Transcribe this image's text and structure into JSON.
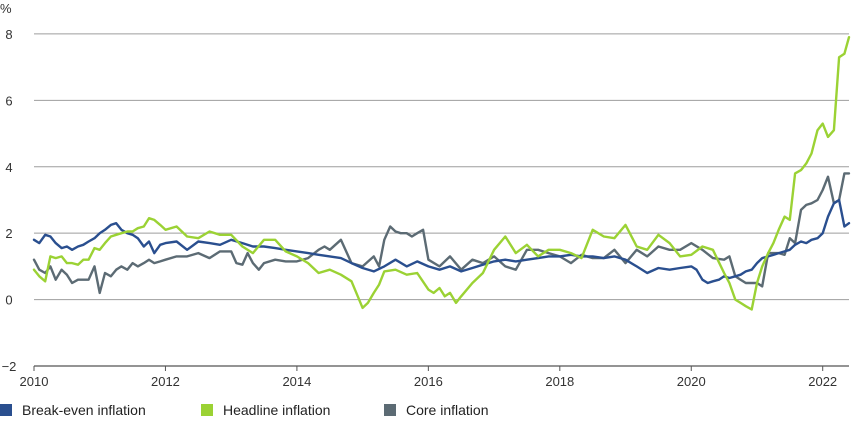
{
  "chart_data": {
    "type": "line",
    "ylabel": "%",
    "ylim": [
      -2,
      8.6
    ],
    "xlim": [
      2010,
      2022.4
    ],
    "yticks": [
      -2,
      0,
      2,
      4,
      6,
      8
    ],
    "xticks": [
      2010,
      2012,
      2014,
      2016,
      2018,
      2020,
      2022
    ],
    "grid": "horizontal",
    "legend_position": "bottom",
    "series": [
      {
        "name": "Break-even inflation",
        "color": "#2a4f8f",
        "x": [
          2010.0,
          2010.08,
          2010.17,
          2010.25,
          2010.33,
          2010.42,
          2010.5,
          2010.58,
          2010.67,
          2010.75,
          2010.83,
          2010.92,
          2011.0,
          2011.08,
          2011.17,
          2011.25,
          2011.33,
          2011.42,
          2011.5,
          2011.58,
          2011.67,
          2011.75,
          2011.83,
          2011.92,
          2012.0,
          2012.17,
          2012.33,
          2012.5,
          2012.67,
          2012.83,
          2013.0,
          2013.17,
          2013.33,
          2013.5,
          2013.67,
          2013.83,
          2014.0,
          2014.17,
          2014.33,
          2014.5,
          2014.67,
          2014.83,
          2015.0,
          2015.17,
          2015.33,
          2015.5,
          2015.67,
          2015.83,
          2016.0,
          2016.17,
          2016.33,
          2016.5,
          2016.67,
          2016.83,
          2017.0,
          2017.17,
          2017.33,
          2017.5,
          2017.67,
          2017.83,
          2018.0,
          2018.17,
          2018.33,
          2018.5,
          2018.67,
          2018.83,
          2019.0,
          2019.17,
          2019.33,
          2019.5,
          2019.67,
          2019.83,
          2020.0,
          2020.08,
          2020.17,
          2020.25,
          2020.33,
          2020.42,
          2020.5,
          2020.58,
          2020.67,
          2020.75,
          2020.83,
          2020.92,
          2021.0,
          2021.08,
          2021.17,
          2021.25,
          2021.33,
          2021.42,
          2021.5,
          2021.58,
          2021.67,
          2021.75,
          2021.83,
          2021.92,
          2022.0,
          2022.08,
          2022.17,
          2022.25,
          2022.33,
          2022.4
        ],
        "values": [
          1.8,
          1.7,
          1.95,
          1.9,
          1.7,
          1.55,
          1.6,
          1.5,
          1.6,
          1.65,
          1.75,
          1.85,
          2.0,
          2.1,
          2.25,
          2.3,
          2.1,
          2.0,
          1.95,
          1.85,
          1.6,
          1.75,
          1.4,
          1.65,
          1.7,
          1.75,
          1.5,
          1.75,
          1.7,
          1.65,
          1.8,
          1.7,
          1.6,
          1.6,
          1.55,
          1.5,
          1.45,
          1.4,
          1.35,
          1.3,
          1.25,
          1.1,
          0.95,
          0.85,
          1.0,
          1.2,
          1.0,
          1.15,
          1.0,
          0.9,
          1.0,
          0.85,
          0.95,
          1.05,
          1.15,
          1.2,
          1.15,
          1.2,
          1.25,
          1.3,
          1.3,
          1.35,
          1.3,
          1.3,
          1.25,
          1.3,
          1.2,
          1.0,
          0.8,
          0.95,
          0.9,
          0.95,
          1.0,
          0.9,
          0.6,
          0.5,
          0.55,
          0.6,
          0.7,
          0.65,
          0.7,
          0.75,
          0.85,
          0.9,
          1.1,
          1.25,
          1.3,
          1.35,
          1.4,
          1.45,
          1.5,
          1.65,
          1.75,
          1.7,
          1.8,
          1.85,
          2.0,
          2.5,
          2.9,
          3.0,
          2.2,
          2.3
        ]
      },
      {
        "name": "Headline inflation",
        "color": "#9bd234",
        "x": [
          2010.0,
          2010.08,
          2010.17,
          2010.25,
          2010.33,
          2010.42,
          2010.5,
          2010.58,
          2010.67,
          2010.75,
          2010.83,
          2010.92,
          2011.0,
          2011.08,
          2011.17,
          2011.25,
          2011.33,
          2011.42,
          2011.5,
          2011.58,
          2011.67,
          2011.75,
          2011.83,
          2011.92,
          2012.0,
          2012.17,
          2012.33,
          2012.5,
          2012.67,
          2012.83,
          2013.0,
          2013.17,
          2013.33,
          2013.5,
          2013.67,
          2013.83,
          2014.0,
          2014.17,
          2014.33,
          2014.5,
          2014.67,
          2014.83,
          2015.0,
          2015.08,
          2015.17,
          2015.25,
          2015.33,
          2015.5,
          2015.67,
          2015.83,
          2016.0,
          2016.08,
          2016.17,
          2016.25,
          2016.33,
          2016.42,
          2016.5,
          2016.67,
          2016.83,
          2017.0,
          2017.17,
          2017.33,
          2017.5,
          2017.67,
          2017.83,
          2018.0,
          2018.17,
          2018.33,
          2018.5,
          2018.67,
          2018.83,
          2019.0,
          2019.17,
          2019.33,
          2019.5,
          2019.67,
          2019.83,
          2020.0,
          2020.17,
          2020.33,
          2020.5,
          2020.58,
          2020.67,
          2020.75,
          2020.83,
          2020.92,
          2021.0,
          2021.08,
          2021.17,
          2021.25,
          2021.33,
          2021.42,
          2021.5,
          2021.58,
          2021.67,
          2021.75,
          2021.83,
          2021.92,
          2022.0,
          2022.08,
          2022.17,
          2022.25,
          2022.33,
          2022.4
        ],
        "values": [
          0.9,
          0.7,
          0.55,
          1.3,
          1.25,
          1.3,
          1.1,
          1.1,
          1.05,
          1.2,
          1.2,
          1.55,
          1.5,
          1.7,
          1.9,
          1.95,
          2.0,
          2.05,
          2.05,
          2.15,
          2.2,
          2.45,
          2.4,
          2.25,
          2.1,
          2.2,
          1.9,
          1.85,
          2.05,
          1.95,
          1.95,
          1.6,
          1.4,
          1.8,
          1.8,
          1.45,
          1.3,
          1.1,
          0.8,
          0.9,
          0.75,
          0.55,
          -0.25,
          -0.1,
          0.2,
          0.45,
          0.85,
          0.9,
          0.75,
          0.8,
          0.3,
          0.2,
          0.35,
          0.1,
          0.2,
          -0.1,
          0.1,
          0.5,
          0.8,
          1.5,
          1.9,
          1.4,
          1.65,
          1.3,
          1.5,
          1.5,
          1.4,
          1.25,
          2.1,
          1.9,
          1.85,
          2.25,
          1.6,
          1.5,
          1.95,
          1.7,
          1.3,
          1.35,
          1.6,
          1.5,
          0.8,
          0.5,
          0.0,
          -0.1,
          -0.2,
          -0.3,
          0.5,
          1.0,
          1.4,
          1.7,
          2.1,
          2.5,
          2.4,
          3.8,
          3.9,
          4.1,
          4.4,
          5.1,
          5.3,
          4.9,
          5.1,
          7.3,
          7.4,
          7.9
        ]
      },
      {
        "name": "Core inflation",
        "color": "#5c6b74",
        "x": [
          2010.0,
          2010.08,
          2010.17,
          2010.25,
          2010.33,
          2010.42,
          2010.5,
          2010.58,
          2010.67,
          2010.75,
          2010.83,
          2010.92,
          2011.0,
          2011.08,
          2011.17,
          2011.25,
          2011.33,
          2011.42,
          2011.5,
          2011.58,
          2011.67,
          2011.75,
          2011.83,
          2011.92,
          2012.0,
          2012.17,
          2012.33,
          2012.5,
          2012.67,
          2012.83,
          2013.0,
          2013.08,
          2013.17,
          2013.25,
          2013.33,
          2013.42,
          2013.5,
          2013.67,
          2013.83,
          2014.0,
          2014.17,
          2014.33,
          2014.42,
          2014.5,
          2014.67,
          2014.83,
          2015.0,
          2015.17,
          2015.25,
          2015.33,
          2015.42,
          2015.5,
          2015.58,
          2015.67,
          2015.75,
          2015.83,
          2015.92,
          2016.0,
          2016.17,
          2016.33,
          2016.5,
          2016.67,
          2016.83,
          2017.0,
          2017.17,
          2017.33,
          2017.5,
          2017.67,
          2017.83,
          2018.0,
          2018.17,
          2018.33,
          2018.5,
          2018.67,
          2018.83,
          2019.0,
          2019.17,
          2019.33,
          2019.5,
          2019.67,
          2019.83,
          2020.0,
          2020.17,
          2020.33,
          2020.5,
          2020.58,
          2020.67,
          2020.75,
          2020.83,
          2020.92,
          2021.0,
          2021.08,
          2021.17,
          2021.25,
          2021.33,
          2021.42,
          2021.5,
          2021.58,
          2021.67,
          2021.75,
          2021.83,
          2021.92,
          2022.0,
          2022.08,
          2022.17,
          2022.25,
          2022.33,
          2022.4
        ],
        "values": [
          1.2,
          0.9,
          0.8,
          1.0,
          0.6,
          0.9,
          0.75,
          0.5,
          0.6,
          0.6,
          0.6,
          1.0,
          0.2,
          0.8,
          0.7,
          0.9,
          1.0,
          0.9,
          1.1,
          1.0,
          1.1,
          1.2,
          1.1,
          1.15,
          1.2,
          1.3,
          1.3,
          1.4,
          1.25,
          1.45,
          1.45,
          1.1,
          1.05,
          1.4,
          1.1,
          0.9,
          1.1,
          1.2,
          1.15,
          1.15,
          1.25,
          1.5,
          1.6,
          1.5,
          1.8,
          1.1,
          1.0,
          1.3,
          1.0,
          1.8,
          2.2,
          2.05,
          2.0,
          2.0,
          1.9,
          2.0,
          2.1,
          1.2,
          1.0,
          1.3,
          0.9,
          1.2,
          1.1,
          1.3,
          1.0,
          0.9,
          1.5,
          1.5,
          1.4,
          1.3,
          1.1,
          1.35,
          1.25,
          1.25,
          1.5,
          1.1,
          1.5,
          1.3,
          1.6,
          1.5,
          1.5,
          1.7,
          1.5,
          1.25,
          1.2,
          1.3,
          0.7,
          0.6,
          0.5,
          0.5,
          0.5,
          0.4,
          1.4,
          1.4,
          1.4,
          1.35,
          1.85,
          1.7,
          2.7,
          2.85,
          2.9,
          3.0,
          3.3,
          3.7,
          2.9,
          3.0,
          3.8,
          3.8
        ]
      }
    ]
  }
}
